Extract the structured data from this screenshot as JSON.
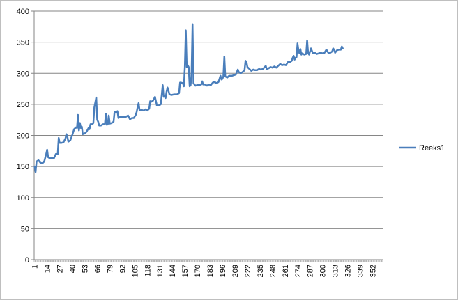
{
  "chart_data": {
    "type": "line",
    "x_start": 1,
    "x_end": 362,
    "x_tick_labels": [
      "1",
      "14",
      "27",
      "40",
      "53",
      "66",
      "79",
      "92",
      "105",
      "118",
      "131",
      "144",
      "157",
      "170",
      "183",
      "196",
      "209",
      "222",
      "235",
      "248",
      "261",
      "274",
      "287",
      "300",
      "313",
      "326",
      "339",
      "352"
    ],
    "ylim": [
      0,
      400
    ],
    "y_ticks": [
      0,
      50,
      100,
      150,
      200,
      250,
      300,
      350,
      400
    ],
    "grid": true,
    "legend_position": "right",
    "colors": {
      "series": "#4a7ebb",
      "grid": "#868686",
      "axis": "#868686"
    },
    "series": [
      {
        "name": "Reeks1",
        "points": [
          [
            1,
            150
          ],
          [
            2,
            141
          ],
          [
            3,
            158
          ],
          [
            5,
            160
          ],
          [
            7,
            156
          ],
          [
            9,
            155
          ],
          [
            11,
            158
          ],
          [
            13,
            170
          ],
          [
            14,
            177
          ],
          [
            15,
            165
          ],
          [
            17,
            163
          ],
          [
            19,
            164
          ],
          [
            21,
            163
          ],
          [
            23,
            170
          ],
          [
            25,
            170
          ],
          [
            26,
            196
          ],
          [
            27,
            188
          ],
          [
            29,
            188
          ],
          [
            31,
            189
          ],
          [
            33,
            195
          ],
          [
            34,
            202
          ],
          [
            35,
            198
          ],
          [
            36,
            190
          ],
          [
            38,
            192
          ],
          [
            40,
            200
          ],
          [
            42,
            210
          ],
          [
            44,
            213
          ],
          [
            45,
            212
          ],
          [
            46,
            233
          ],
          [
            47,
            208
          ],
          [
            48,
            220
          ],
          [
            49,
            212
          ],
          [
            50,
            214
          ],
          [
            51,
            202
          ],
          [
            53,
            203
          ],
          [
            55,
            206
          ],
          [
            57,
            212
          ],
          [
            58,
            210
          ],
          [
            59,
            218
          ],
          [
            61,
            218
          ],
          [
            62,
            220
          ],
          [
            63,
            245
          ],
          [
            64,
            253
          ],
          [
            65,
            261
          ],
          [
            66,
            225
          ],
          [
            67,
            222
          ],
          [
            68,
            216
          ],
          [
            70,
            216
          ],
          [
            72,
            218
          ],
          [
            74,
            218
          ],
          [
            75,
            235
          ],
          [
            76,
            217
          ],
          [
            77,
            218
          ],
          [
            78,
            232
          ],
          [
            79,
            219
          ],
          [
            81,
            220
          ],
          [
            83,
            222
          ],
          [
            84,
            238
          ],
          [
            86,
            237
          ],
          [
            87,
            239
          ],
          [
            88,
            228
          ],
          [
            90,
            230
          ],
          [
            93,
            230
          ],
          [
            96,
            230
          ],
          [
            98,
            232
          ],
          [
            100,
            226
          ],
          [
            102,
            228
          ],
          [
            104,
            228
          ],
          [
            106,
            233
          ],
          [
            107,
            238
          ],
          [
            108,
            246
          ],
          [
            109,
            252
          ],
          [
            110,
            240
          ],
          [
            112,
            241
          ],
          [
            114,
            240
          ],
          [
            116,
            242
          ],
          [
            118,
            240
          ],
          [
            120,
            243
          ],
          [
            121,
            255
          ],
          [
            122,
            254
          ],
          [
            124,
            256
          ],
          [
            126,
            262
          ],
          [
            127,
            255
          ],
          [
            128,
            248
          ],
          [
            130,
            248
          ],
          [
            132,
            250
          ],
          [
            133,
            265
          ],
          [
            134,
            281
          ],
          [
            135,
            262
          ],
          [
            136,
            263
          ],
          [
            137,
            260
          ],
          [
            138,
            270
          ],
          [
            139,
            277
          ],
          [
            140,
            272
          ],
          [
            141,
            266
          ],
          [
            143,
            265
          ],
          [
            146,
            266
          ],
          [
            149,
            266
          ],
          [
            151,
            268
          ],
          [
            152,
            285
          ],
          [
            153,
            285
          ],
          [
            155,
            284
          ],
          [
            156,
            279
          ],
          [
            157,
            310
          ],
          [
            158,
            369
          ],
          [
            159,
            310
          ],
          [
            160,
            313
          ],
          [
            161,
            310
          ],
          [
            162,
            279
          ],
          [
            163,
            281
          ],
          [
            164,
            300
          ],
          [
            165,
            379
          ],
          [
            166,
            284
          ],
          [
            167,
            282
          ],
          [
            168,
            280
          ],
          [
            170,
            281
          ],
          [
            172,
            281
          ],
          [
            174,
            282
          ],
          [
            175,
            287
          ],
          [
            176,
            282
          ],
          [
            178,
            282
          ],
          [
            180,
            280
          ],
          [
            182,
            282
          ],
          [
            184,
            281
          ],
          [
            186,
            285
          ],
          [
            188,
            286
          ],
          [
            190,
            284
          ],
          [
            192,
            286
          ],
          [
            194,
            296
          ],
          [
            195,
            290
          ],
          [
            196,
            291
          ],
          [
            197,
            295
          ],
          [
            198,
            327
          ],
          [
            199,
            295
          ],
          [
            201,
            293
          ],
          [
            203,
            296
          ],
          [
            206,
            296
          ],
          [
            208,
            297
          ],
          [
            210,
            298
          ],
          [
            212,
            306
          ],
          [
            213,
            302
          ],
          [
            215,
            300
          ],
          [
            217,
            302
          ],
          [
            219,
            305
          ],
          [
            220,
            320
          ],
          [
            221,
            318
          ],
          [
            222,
            310
          ],
          [
            224,
            307
          ],
          [
            226,
            304
          ],
          [
            228,
            306
          ],
          [
            230,
            305
          ],
          [
            232,
            305
          ],
          [
            234,
            307
          ],
          [
            236,
            306
          ],
          [
            238,
            307
          ],
          [
            240,
            310
          ],
          [
            241,
            312
          ],
          [
            242,
            307
          ],
          [
            244,
            308
          ],
          [
            246,
            310
          ],
          [
            248,
            309
          ],
          [
            250,
            311
          ],
          [
            252,
            309
          ],
          [
            254,
            312
          ],
          [
            256,
            315
          ],
          [
            258,
            313
          ],
          [
            260,
            314
          ],
          [
            262,
            313
          ],
          [
            264,
            318
          ],
          [
            266,
            318
          ],
          [
            268,
            320
          ],
          [
            269,
            325
          ],
          [
            270,
            328
          ],
          [
            271,
            322
          ],
          [
            272,
            325
          ],
          [
            273,
            326
          ],
          [
            274,
            348
          ],
          [
            275,
            337
          ],
          [
            276,
            332
          ],
          [
            277,
            339
          ],
          [
            278,
            330
          ],
          [
            279,
            332
          ],
          [
            281,
            330
          ],
          [
            283,
            331
          ],
          [
            284,
            353
          ],
          [
            285,
            333
          ],
          [
            286,
            330
          ],
          [
            287,
            335
          ],
          [
            288,
            340
          ],
          [
            289,
            336
          ],
          [
            290,
            332
          ],
          [
            292,
            333
          ],
          [
            294,
            331
          ],
          [
            296,
            332
          ],
          [
            298,
            333
          ],
          [
            300,
            332
          ],
          [
            302,
            333
          ],
          [
            304,
            338
          ],
          [
            306,
            333
          ],
          [
            308,
            333
          ],
          [
            310,
            335
          ],
          [
            311,
            340
          ],
          [
            312,
            338
          ],
          [
            313,
            333
          ],
          [
            315,
            337
          ],
          [
            317,
            338
          ],
          [
            319,
            338
          ],
          [
            320,
            343
          ],
          [
            321,
            340
          ]
        ]
      }
    ]
  }
}
